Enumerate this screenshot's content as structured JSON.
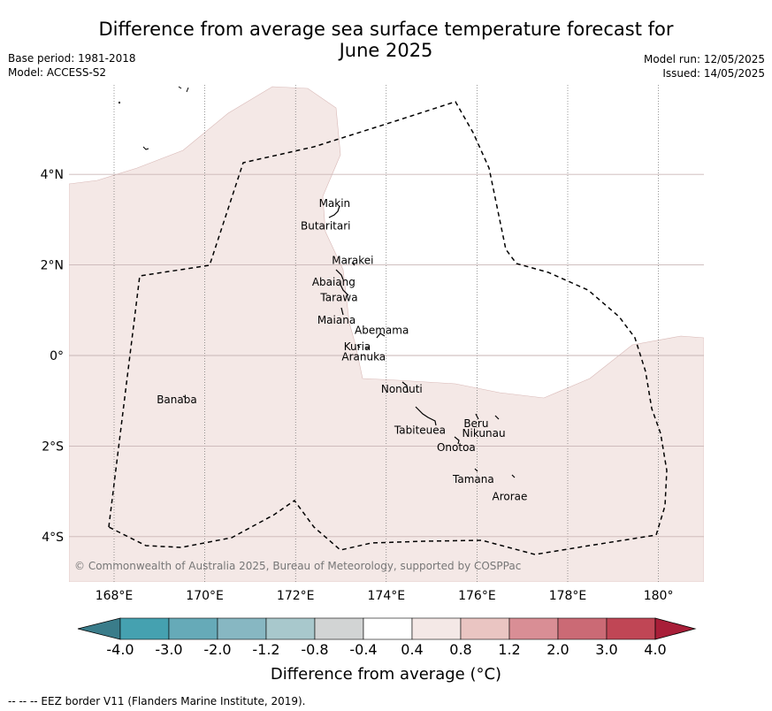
{
  "title": "Difference from average sea surface temperature forecast for June 2025",
  "title_line1": "Difference from average sea surface temperature forecast for",
  "title_line2": "June 2025",
  "meta_left": {
    "base_period": "Base period: 1981-2018",
    "model": "Model: ACCESS-S2"
  },
  "meta_right": {
    "model_run": "Model run: 12/05/2025",
    "issued": "Issued: 14/05/2025"
  },
  "map": {
    "lon_range": [
      167,
      181
    ],
    "lat_range": [
      -5,
      6
    ],
    "x_ticks": [
      {
        "lon": 168,
        "label": "168°E"
      },
      {
        "lon": 170,
        "label": "170°E"
      },
      {
        "lon": 172,
        "label": "172°E"
      },
      {
        "lon": 174,
        "label": "174°E"
      },
      {
        "lon": 176,
        "label": "176°E"
      },
      {
        "lon": 178,
        "label": "178°E"
      },
      {
        "lon": 180,
        "label": "180°"
      }
    ],
    "y_ticks": [
      {
        "lat": 4,
        "label": "4°N"
      },
      {
        "lat": 2,
        "label": "2°N"
      },
      {
        "lat": 0,
        "label": "0°"
      },
      {
        "lat": -2,
        "label": "2°S"
      },
      {
        "lat": -4,
        "label": "4°S"
      }
    ],
    "anomaly_fill_color": "#f4e8e6",
    "anomaly_fill_category": "0.4 to 0.8",
    "islands": [
      {
        "name": "Makin",
        "lon": 172.9,
        "lat": 3.2
      },
      {
        "name": "Butaritari",
        "lon": 172.8,
        "lat": 2.9
      },
      {
        "name": "Marakei",
        "lon": 173.3,
        "lat": 2.0
      },
      {
        "name": "Abaiang",
        "lon": 172.9,
        "lat": 1.8
      },
      {
        "name": "Tarawa",
        "lon": 173.0,
        "lat": 1.4
      },
      {
        "name": "Maiana",
        "lon": 173.0,
        "lat": 0.9
      },
      {
        "name": "Abemama",
        "lon": 173.9,
        "lat": 0.4
      },
      {
        "name": "Kuria",
        "lon": 173.4,
        "lat": 0.2
      },
      {
        "name": "Aranuka",
        "lon": 173.6,
        "lat": 0.15
      },
      {
        "name": "Nonouti",
        "lon": 174.4,
        "lat": -0.7
      },
      {
        "name": "Banaba",
        "lon": 169.5,
        "lat": -0.9
      },
      {
        "name": "Tabiteuea",
        "lon": 174.9,
        "lat": -1.3
      },
      {
        "name": "Beru",
        "lon": 176.0,
        "lat": -1.35
      },
      {
        "name": "Nikunau",
        "lon": 176.5,
        "lat": -1.35
      },
      {
        "name": "Onotoa",
        "lon": 175.6,
        "lat": -1.8
      },
      {
        "name": "Tamana",
        "lon": 176.0,
        "lat": -2.5
      },
      {
        "name": "Arorae",
        "lon": 176.8,
        "lat": -2.65
      }
    ],
    "copyright": "© Commonwealth of Australia 2025, Bureau of Meteorology, supported by COSPPac"
  },
  "colorbar": {
    "title": "Difference from average (°C)",
    "bins": [
      {
        "color": "#3a7c8a",
        "lower": "<-4.0"
      },
      {
        "color": "#45a1b0",
        "lower": "-4.0"
      },
      {
        "color": "#66aab8",
        "lower": "-3.0"
      },
      {
        "color": "#87b7c2",
        "lower": "-2.0"
      },
      {
        "color": "#a8c8cc",
        "lower": "-1.2"
      },
      {
        "color": "#d2d4d4",
        "lower": "-0.8"
      },
      {
        "color": "#ffffff",
        "lower": "-0.4"
      },
      {
        "color": "#f4e8e6",
        "lower": "0.4"
      },
      {
        "color": "#eac5c2",
        "lower": "0.8"
      },
      {
        "color": "#d98e95",
        "lower": "1.2"
      },
      {
        "color": "#cb6a75",
        "lower": "2.0"
      },
      {
        "color": "#c04655",
        "lower": "3.0"
      },
      {
        "color": "#a81e38",
        "lower": ">4.0"
      }
    ],
    "tick_labels": [
      "-4.0",
      "-3.0",
      "-2.0",
      "-1.2",
      "-0.8",
      "-0.4",
      "0.4",
      "0.8",
      "1.2",
      "2.0",
      "3.0",
      "4.0"
    ]
  },
  "footer": "--  --  -- EEZ border V11 (Flanders Marine Institute, 2019)."
}
